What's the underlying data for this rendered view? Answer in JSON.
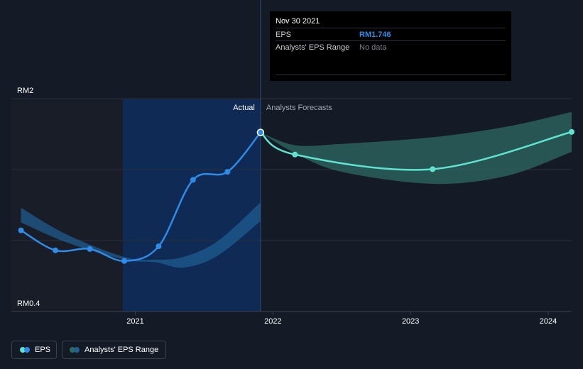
{
  "tooltip": {
    "date": "Nov 30 2021",
    "eps_label": "EPS",
    "eps_value": "RM1.746",
    "range_label": "Analysts' EPS Range",
    "range_value": "No data"
  },
  "legend": {
    "eps_label": "EPS",
    "range_label": "Analysts' EPS Range"
  },
  "colors": {
    "background": "#151b26",
    "actual_line": "#2f8be6",
    "forecast_line": "#5fe3d0",
    "actual_band": "#1f5f94",
    "forecast_band": "#2d6a63",
    "highlight": "#0f2a55"
  },
  "chart_data": {
    "type": "line",
    "title": "",
    "xlabel": "",
    "ylabel": "",
    "y_axis_labels": [
      "RM2",
      "RM0.4"
    ],
    "ylim": [
      0.4,
      2.0
    ],
    "xlim": [
      2020.1,
      2024.17
    ],
    "x_ticks": [
      {
        "value": 2021.0,
        "label": "2021"
      },
      {
        "value": 2022.0,
        "label": "2022"
      },
      {
        "value": 2023.0,
        "label": "2023"
      },
      {
        "value": 2024.0,
        "label": "2024"
      }
    ],
    "section_labels": {
      "actual": "Actual",
      "forecast": "Analysts Forecasts"
    },
    "divider_x": 2021.91,
    "highlight_start_x": 2020.91,
    "series": [
      {
        "name": "EPS",
        "role": "actual",
        "points": [
          {
            "x": 2020.17,
            "y": 1.01
          },
          {
            "x": 2020.42,
            "y": 0.86
          },
          {
            "x": 2020.67,
            "y": 0.87
          },
          {
            "x": 2020.92,
            "y": 0.78
          },
          {
            "x": 2021.17,
            "y": 0.89
          },
          {
            "x": 2021.42,
            "y": 1.39
          },
          {
            "x": 2021.67,
            "y": 1.45
          },
          {
            "x": 2021.91,
            "y": 1.746
          }
        ]
      },
      {
        "name": "EPS Forecast",
        "role": "forecast",
        "points": [
          {
            "x": 2021.91,
            "y": 1.746
          },
          {
            "x": 2022.16,
            "y": 1.58
          },
          {
            "x": 2023.16,
            "y": 1.47
          },
          {
            "x": 2024.17,
            "y": 1.75
          }
        ]
      }
    ],
    "ranges": [
      {
        "name": "Analysts' EPS Range (past)",
        "role": "actual",
        "points": [
          {
            "x": 2020.17,
            "y_low": 1.07,
            "y_high": 1.18
          },
          {
            "x": 2020.5,
            "y_low": 0.92,
            "y_high": 0.98
          },
          {
            "x": 2020.92,
            "y_low": 0.79,
            "y_high": 0.81
          },
          {
            "x": 2021.15,
            "y_low": 0.77,
            "y_high": 0.79
          },
          {
            "x": 2021.35,
            "y_low": 0.73,
            "y_high": 0.81
          },
          {
            "x": 2021.6,
            "y_low": 0.82,
            "y_high": 0.93
          },
          {
            "x": 2021.91,
            "y_low": 1.08,
            "y_high": 1.22
          }
        ]
      },
      {
        "name": "Analysts' EPS Range (forecast)",
        "role": "forecast",
        "points": [
          {
            "x": 2021.91,
            "y_low": 1.746,
            "y_high": 1.746
          },
          {
            "x": 2022.16,
            "y_low": 1.59,
            "y_high": 1.65
          },
          {
            "x": 2022.5,
            "y_low": 1.45,
            "y_high": 1.66
          },
          {
            "x": 2023.16,
            "y_low": 1.36,
            "y_high": 1.71
          },
          {
            "x": 2023.7,
            "y_low": 1.42,
            "y_high": 1.79
          },
          {
            "x": 2024.17,
            "y_low": 1.6,
            "y_high": 1.9
          }
        ]
      }
    ]
  }
}
